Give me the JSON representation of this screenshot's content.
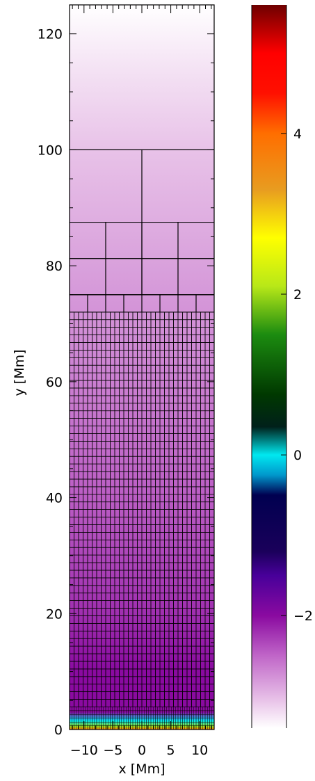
{
  "chart_data": [
    {
      "type": "heatmap",
      "subtype": "adaptive-mesh-block-grid",
      "xlabel": "x [Mm]",
      "ylabel": "y [Mm]",
      "xlim": [
        -12.5,
        12.5
      ],
      "ylim": [
        0,
        125
      ],
      "x_ticks": [
        -10,
        -5,
        0,
        5,
        10
      ],
      "x_tick_labels": [
        "−10",
        "−5",
        "0",
        "5",
        "10"
      ],
      "y_ticks": [
        0,
        20,
        40,
        60,
        80,
        100,
        120
      ],
      "y_tick_labels": [
        "0",
        "20",
        "40",
        "60",
        "80",
        "100",
        "120"
      ],
      "grid_levels": [
        {
          "y_range": [
            100,
            125
          ],
          "columns": 1,
          "rows": 1
        },
        {
          "y_range": [
            75,
            100
          ],
          "columns": 2,
          "rows": 1
        },
        {
          "y_range": [
            75,
            87.5
          ],
          "columns": 4,
          "rows": 2
        },
        {
          "y_range": [
            72,
            75
          ],
          "columns": 8,
          "rows": 1
        },
        {
          "y_range": [
            3.9,
            72
          ],
          "columns": 32,
          "rows": 52
        },
        {
          "y_range": [
            0,
            3.9
          ],
          "columns": 64,
          "rows": 6
        }
      ],
      "field_profile": {
        "y": [
          0,
          0.5,
          1.5,
          3,
          10,
          20,
          40,
          60,
          80,
          100,
          115,
          125
        ],
        "value": [
          4.0,
          2.0,
          0.0,
          -2.0,
          -2.0,
          -2.2,
          -2.45,
          -2.65,
          -2.85,
          -3.05,
          -3.25,
          -3.4
        ]
      }
    },
    {
      "type": "colorbar",
      "vlim": [
        -3.4,
        5.6
      ],
      "ticks": [
        -2,
        0,
        2,
        4
      ],
      "tick_labels": [
        "−2",
        "0",
        "2",
        "4"
      ],
      "colormap_stops": [
        {
          "value": -3.4,
          "color": "#ffffff"
        },
        {
          "value": -3.05,
          "color": "#e8c2e8"
        },
        {
          "value": -2.5,
          "color": "#c066c8"
        },
        {
          "value": -2.0,
          "color": "#8a0aa0"
        },
        {
          "value": -1.5,
          "color": "#48009a"
        },
        {
          "value": -1.2,
          "color": "#1a005a"
        },
        {
          "value": -0.5,
          "color": "#000050"
        },
        {
          "value": -0.25,
          "color": "#0098cc"
        },
        {
          "value": 0.0,
          "color": "#00e8f0"
        },
        {
          "value": 0.35,
          "color": "#00201a"
        },
        {
          "value": 0.75,
          "color": "#003800"
        },
        {
          "value": 1.5,
          "color": "#1c8c10"
        },
        {
          "value": 2.1,
          "color": "#b8e818"
        },
        {
          "value": 2.7,
          "color": "#ffff00"
        },
        {
          "value": 3.3,
          "color": "#e89c20"
        },
        {
          "value": 4.0,
          "color": "#ff6e00"
        },
        {
          "value": 4.5,
          "color": "#ff1000"
        },
        {
          "value": 5.0,
          "color": "#ff0000"
        },
        {
          "value": 5.6,
          "color": "#6e0000"
        }
      ]
    }
  ]
}
